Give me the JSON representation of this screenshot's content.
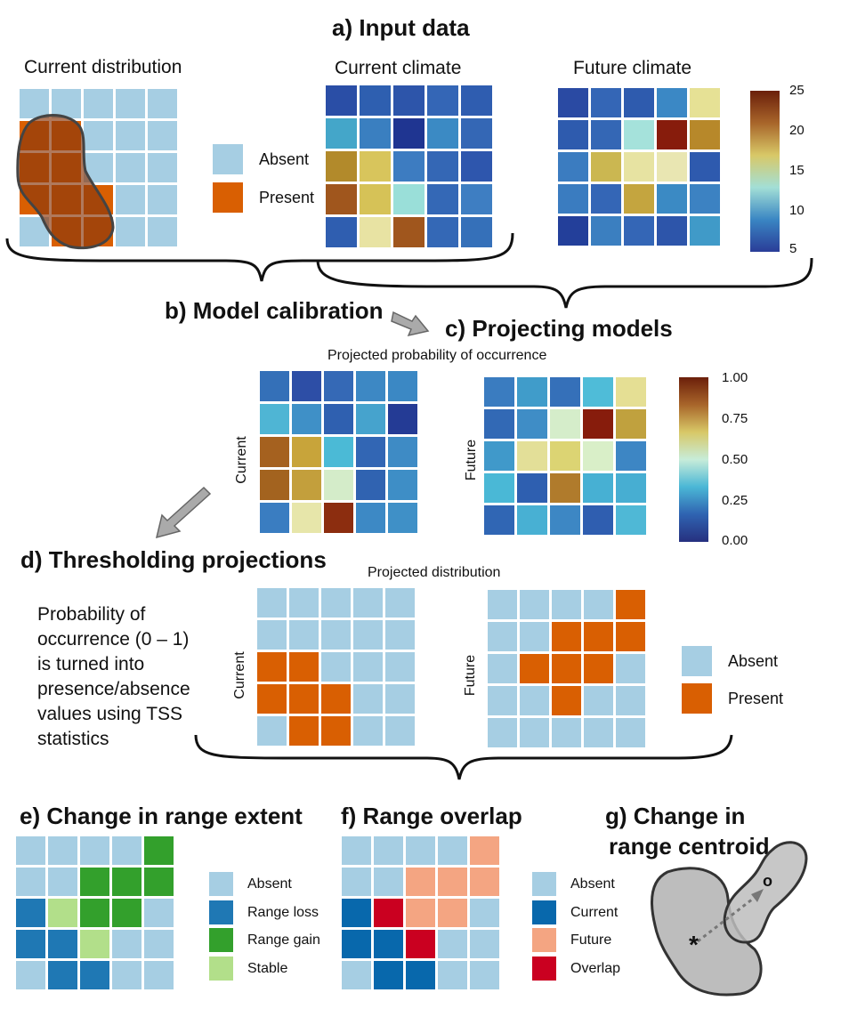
{
  "colors": {
    "absent": "#a6cee3",
    "present": "#d95f02",
    "range_loss": "#1f78b4",
    "range_gain": "#33a02c",
    "stable": "#b2df8a",
    "overlap_current": "#0868ac",
    "overlap_future": "#f4a582",
    "overlap_both": "#ca0020"
  },
  "panel_a": {
    "title": "a) Input data",
    "current_distribution_label": "Current distribution",
    "current_climate_label": "Current climate",
    "future_climate_label": "Future climate",
    "legend": {
      "absent": "Absent",
      "present": "Present"
    },
    "colorbar_ticks": [
      "25",
      "20",
      "15",
      "10",
      "5"
    ],
    "dist_grid": [
      [
        "#a6cee3",
        "#a6cee3",
        "#a6cee3",
        "#a6cee3",
        "#a6cee3"
      ],
      [
        "#d95f02",
        "#d95f02",
        "#a6cee3",
        "#a6cee3",
        "#a6cee3"
      ],
      [
        "#d95f02",
        "#d95f02",
        "#a6cee3",
        "#a6cee3",
        "#a6cee3"
      ],
      [
        "#d95f02",
        "#d95f02",
        "#d95f02",
        "#a6cee3",
        "#a6cee3"
      ],
      [
        "#a6cee3",
        "#d95f02",
        "#d95f02",
        "#a6cee3",
        "#a6cee3"
      ]
    ],
    "current_climate_grid": [
      [
        "#2a4ea6",
        "#2e5fb0",
        "#2d55aa",
        "#3466b6",
        "#2f5db0"
      ],
      [
        "#44a6c9",
        "#3a7fc0",
        "#1f3591",
        "#3b8ac4",
        "#3467b5"
      ],
      [
        "#b28a2b",
        "#d8c55c",
        "#3d7cc1",
        "#3467b5",
        "#2e56ad"
      ],
      [
        "#a0561d",
        "#d6c257",
        "#9adfd9",
        "#3468b6",
        "#3e7ec2"
      ],
      [
        "#2f5eb0",
        "#e8e3a3",
        "#a0561d",
        "#3468b6",
        "#3570b9"
      ]
    ],
    "future_climate_grid": [
      [
        "#2a4aa3",
        "#3466b6",
        "#2e5bae",
        "#3b88c5",
        "#e6e195"
      ],
      [
        "#2e5bae",
        "#3467b5",
        "#a5e2db",
        "#871c0c",
        "#b7882a"
      ],
      [
        "#3b7cc0",
        "#cbb751",
        "#e7e3a2",
        "#e9e6b2",
        "#2e5aae"
      ],
      [
        "#3a7cc0",
        "#3466b6",
        "#c4a53f",
        "#3b8ac4",
        "#3c82c2"
      ],
      [
        "#233f9a",
        "#3b7fc0",
        "#3466b6",
        "#2d55aa",
        "#409ac8"
      ]
    ]
  },
  "panel_b": {
    "title": "b) Model calibration"
  },
  "panel_c": {
    "title": "c) Projecting models",
    "subtitle": "Projected probability of occurrence",
    "current_label": "Current",
    "future_label": "Future",
    "colorbar_ticks": [
      "1.00",
      "0.75",
      "0.50",
      "0.25",
      "0.00"
    ],
    "current_grid": [
      [
        "#3470b8",
        "#2d4ea6",
        "#3569b6",
        "#3d88c4",
        "#3b88c4"
      ],
      [
        "#4fb5d4",
        "#3f90c7",
        "#2f60b0",
        "#46a3cd",
        "#243b95"
      ],
      [
        "#a5611f",
        "#c8a43a",
        "#4bbad6",
        "#3266b4",
        "#3e8bc5"
      ],
      [
        "#a3631f",
        "#c39f3c",
        "#d4ecc9",
        "#3063b1",
        "#3e8ec6"
      ],
      [
        "#3a7dc1",
        "#e7e6aa",
        "#8c2d0f",
        "#3d89c5",
        "#3f90c7"
      ]
    ],
    "future_grid": [
      [
        "#3a7cc0",
        "#409cca",
        "#3570b9",
        "#4fbcd8",
        "#e5df94"
      ],
      [
        "#3269b5",
        "#3f8dc6",
        "#d5edca",
        "#871c0c",
        "#c0a13e"
      ],
      [
        "#4099ca",
        "#e3df98",
        "#dcd473",
        "#d9efc8",
        "#3d86c4"
      ],
      [
        "#4ab8d6",
        "#2e5fb0",
        "#b07b2c",
        "#47b0d3",
        "#47aed2"
      ],
      [
        "#3066b4",
        "#48b0d3",
        "#3d87c4",
        "#2f5eb0",
        "#4fb8d6"
      ]
    ]
  },
  "panel_d": {
    "title": "d) Thresholding projections",
    "subtitle": "Projected distribution",
    "current_label": "Current",
    "future_label": "Future",
    "description": [
      "Probability of",
      "occurrence (0 – 1)",
      "is turned into",
      "presence/absence",
      "values using TSS",
      "statistics"
    ],
    "legend": {
      "absent": "Absent",
      "present": "Present"
    },
    "current_grid": [
      [
        "#a6cee3",
        "#a6cee3",
        "#a6cee3",
        "#a6cee3",
        "#a6cee3"
      ],
      [
        "#a6cee3",
        "#a6cee3",
        "#a6cee3",
        "#a6cee3",
        "#a6cee3"
      ],
      [
        "#d95f02",
        "#d95f02",
        "#a6cee3",
        "#a6cee3",
        "#a6cee3"
      ],
      [
        "#d95f02",
        "#d95f02",
        "#d95f02",
        "#a6cee3",
        "#a6cee3"
      ],
      [
        "#a6cee3",
        "#d95f02",
        "#d95f02",
        "#a6cee3",
        "#a6cee3"
      ]
    ],
    "future_grid": [
      [
        "#a6cee3",
        "#a6cee3",
        "#a6cee3",
        "#a6cee3",
        "#d95f02"
      ],
      [
        "#a6cee3",
        "#a6cee3",
        "#d95f02",
        "#d95f02",
        "#d95f02"
      ],
      [
        "#a6cee3",
        "#d95f02",
        "#d95f02",
        "#d95f02",
        "#a6cee3"
      ],
      [
        "#a6cee3",
        "#a6cee3",
        "#d95f02",
        "#a6cee3",
        "#a6cee3"
      ],
      [
        "#a6cee3",
        "#a6cee3",
        "#a6cee3",
        "#a6cee3",
        "#a6cee3"
      ]
    ]
  },
  "panel_e": {
    "title": "e) Change in range extent",
    "legend": {
      "absent": "Absent",
      "range_loss": "Range loss",
      "range_gain": "Range gain",
      "stable": "Stable"
    },
    "grid": [
      [
        "#a6cee3",
        "#a6cee3",
        "#a6cee3",
        "#a6cee3",
        "#33a02c"
      ],
      [
        "#a6cee3",
        "#a6cee3",
        "#33a02c",
        "#33a02c",
        "#33a02c"
      ],
      [
        "#1f78b4",
        "#b2df8a",
        "#33a02c",
        "#33a02c",
        "#a6cee3"
      ],
      [
        "#1f78b4",
        "#1f78b4",
        "#b2df8a",
        "#a6cee3",
        "#a6cee3"
      ],
      [
        "#a6cee3",
        "#1f78b4",
        "#1f78b4",
        "#a6cee3",
        "#a6cee3"
      ]
    ]
  },
  "panel_f": {
    "title": "f) Range overlap",
    "legend": {
      "absent": "Absent",
      "current": "Current",
      "future": "Future",
      "overlap": "Overlap"
    },
    "grid": [
      [
        "#a6cee3",
        "#a6cee3",
        "#a6cee3",
        "#a6cee3",
        "#f4a582"
      ],
      [
        "#a6cee3",
        "#a6cee3",
        "#f4a582",
        "#f4a582",
        "#f4a582"
      ],
      [
        "#0868ac",
        "#ca0020",
        "#f4a582",
        "#f4a582",
        "#a6cee3"
      ],
      [
        "#0868ac",
        "#0868ac",
        "#ca0020",
        "#a6cee3",
        "#a6cee3"
      ],
      [
        "#a6cee3",
        "#0868ac",
        "#0868ac",
        "#a6cee3",
        "#a6cee3"
      ]
    ]
  },
  "panel_g": {
    "title_line1": "g) Change in",
    "title_line2": "range centroid",
    "current_marker": "*",
    "future_marker": "o"
  }
}
